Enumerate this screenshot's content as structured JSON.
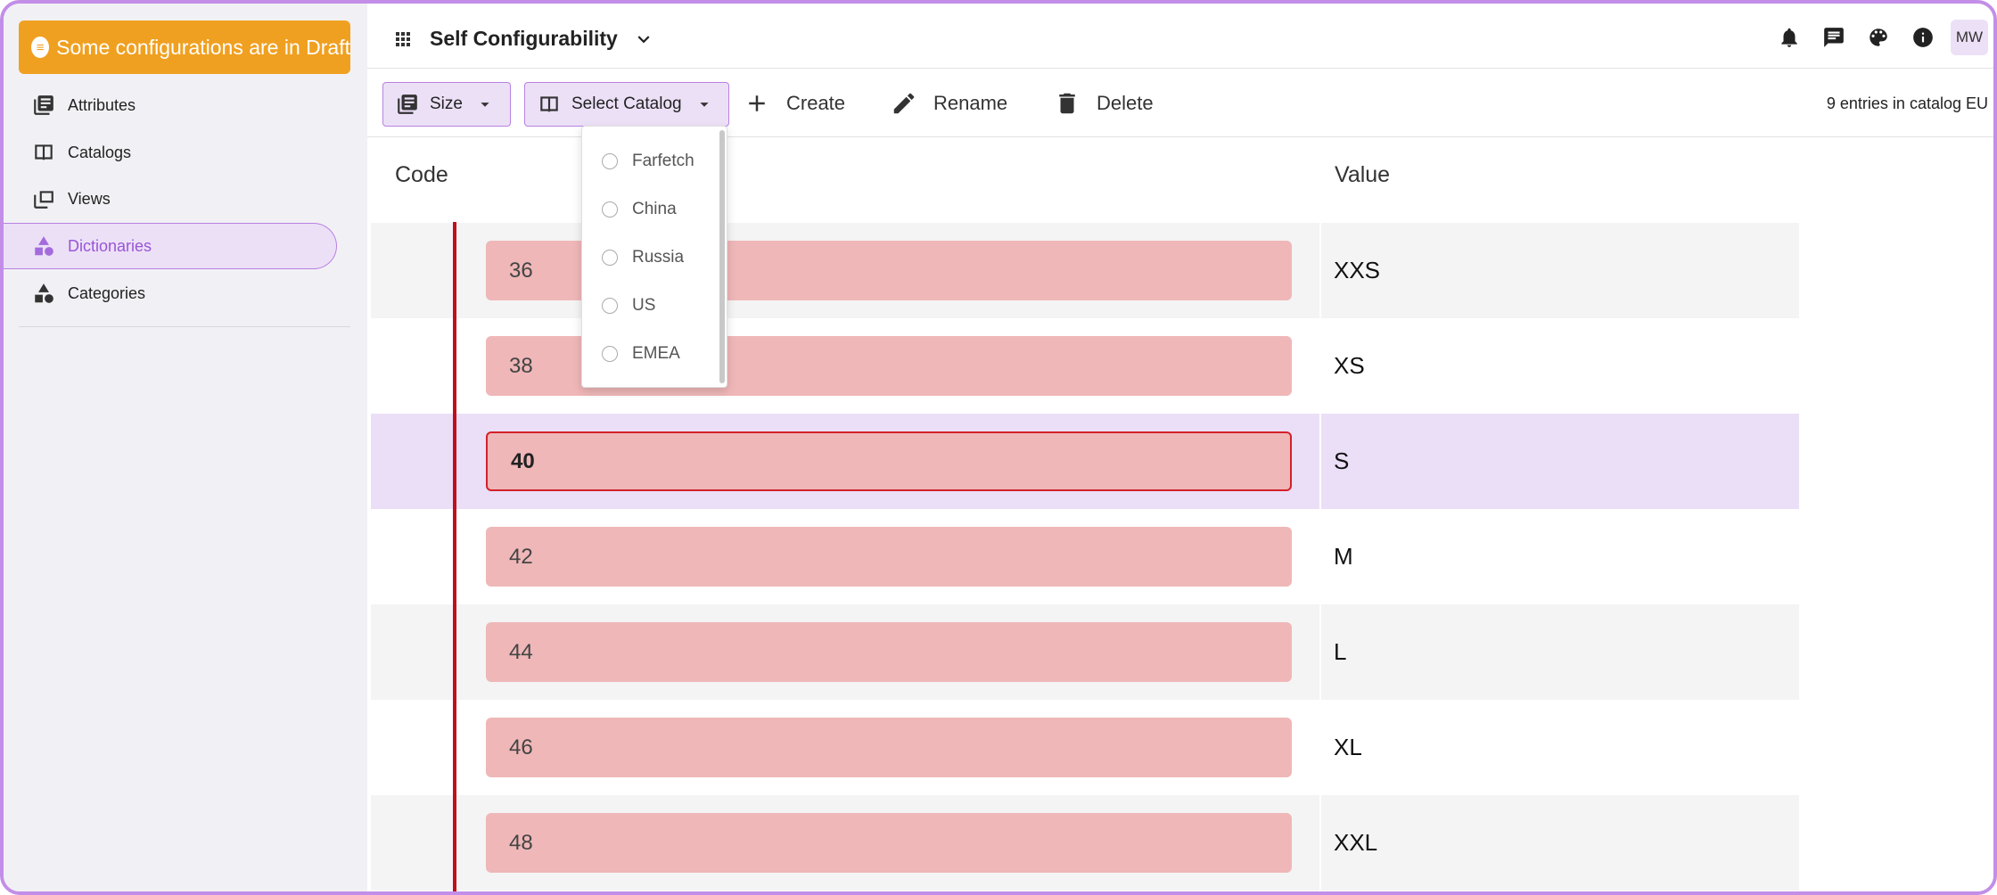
{
  "banner": {
    "text": "Some configurations are in Draft",
    "icon": "draft-icon"
  },
  "sidebar": {
    "items": [
      {
        "label": "Attributes",
        "icon": "attributes-icon"
      },
      {
        "label": "Catalogs",
        "icon": "catalog-book-icon"
      },
      {
        "label": "Views",
        "icon": "views-icon"
      },
      {
        "label": "Dictionaries",
        "icon": "shapes-icon",
        "active": true
      },
      {
        "label": "Categories",
        "icon": "categories-icon"
      }
    ]
  },
  "header": {
    "title": "Self Configurability",
    "avatar": "MW",
    "icons": [
      "bell-icon",
      "chat-icon",
      "palette-icon",
      "info-icon"
    ]
  },
  "toolbar": {
    "dictionary_select": "Size",
    "catalog_select": "Select Catalog",
    "create_label": "Create",
    "rename_label": "Rename",
    "delete_label": "Delete",
    "entries_text": "9 entries in catalog EU"
  },
  "catalog_dropdown": {
    "options": [
      "Farfetch",
      "China",
      "Russia",
      "US",
      "EMEA"
    ]
  },
  "table": {
    "headers": {
      "code": "Code",
      "value": "Value"
    },
    "rows": [
      {
        "code": "36",
        "value": "XXS"
      },
      {
        "code": "38",
        "value": "XS"
      },
      {
        "code": "40",
        "value": "S",
        "selected": true
      },
      {
        "code": "42",
        "value": "M"
      },
      {
        "code": "44",
        "value": "L"
      },
      {
        "code": "46",
        "value": "XL"
      },
      {
        "code": "48",
        "value": "XXL"
      }
    ]
  },
  "colors": {
    "accent": "#b881e2",
    "banner": "#f0a020",
    "error": "#d4202a",
    "code_bg": "#efb7b8"
  }
}
